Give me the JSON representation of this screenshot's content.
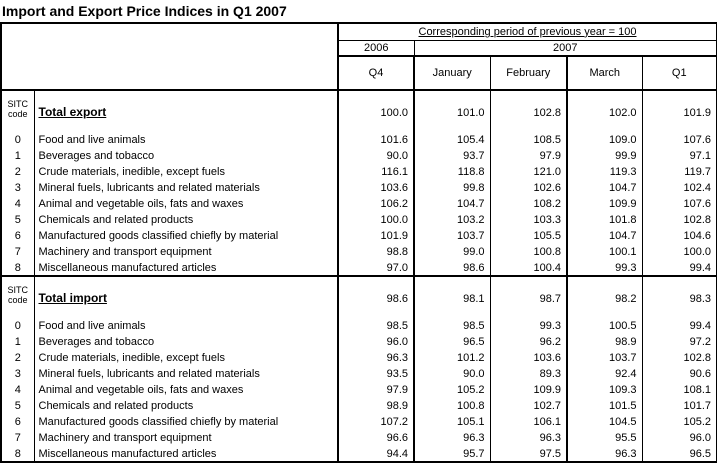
{
  "title": "Import and Export Price Indices in Q1 2007",
  "chart_data": {
    "type": "table",
    "title": "Import and Export Price Indices in Q1 2007",
    "unit_note": "Corresponding period of previous year = 100",
    "year_groups": [
      {
        "label": "2006",
        "columns": 1
      },
      {
        "label": "2007",
        "columns": 4
      }
    ],
    "columns": [
      "Q4",
      "January",
      "February",
      "March",
      "Q1"
    ],
    "row_code_header": [
      "SITC",
      "code"
    ],
    "sections": [
      {
        "total": {
          "label": "Total export",
          "values": [
            "100.0",
            "101.0",
            "102.8",
            "102.0",
            "101.9"
          ]
        },
        "rows": [
          {
            "code": "0",
            "name": "Food and live animals",
            "values": [
              "101.6",
              "105.4",
              "108.5",
              "109.0",
              "107.6"
            ]
          },
          {
            "code": "1",
            "name": "Beverages and tobacco",
            "values": [
              "90.0",
              "93.7",
              "97.9",
              "99.9",
              "97.1"
            ]
          },
          {
            "code": "2",
            "name": "Crude materials, inedible, except fuels",
            "values": [
              "116.1",
              "118.8",
              "121.0",
              "119.3",
              "119.7"
            ]
          },
          {
            "code": "3",
            "name": "Mineral fuels, lubricants and related materials",
            "values": [
              "103.6",
              "99.8",
              "102.6",
              "104.7",
              "102.4"
            ]
          },
          {
            "code": "4",
            "name": "Animal and vegetable oils, fats and waxes",
            "values": [
              "106.2",
              "104.7",
              "108.2",
              "109.9",
              "107.6"
            ]
          },
          {
            "code": "5",
            "name": "Chemicals and related products",
            "values": [
              "100.0",
              "103.2",
              "103.3",
              "101.8",
              "102.8"
            ]
          },
          {
            "code": "6",
            "name": "Manufactured goods classified chiefly by material",
            "values": [
              "101.9",
              "103.7",
              "105.5",
              "104.7",
              "104.6"
            ]
          },
          {
            "code": "7",
            "name": "Machinery and transport equipment",
            "values": [
              "98.8",
              "99.0",
              "100.8",
              "100.1",
              "100.0"
            ]
          },
          {
            "code": "8",
            "name": "Miscellaneous manufactured articles",
            "values": [
              "97.0",
              "98.6",
              "100.4",
              "99.3",
              "99.4"
            ]
          }
        ]
      },
      {
        "total": {
          "label": "Total import",
          "values": [
            "98.6",
            "98.1",
            "98.7",
            "98.2",
            "98.3"
          ]
        },
        "rows": [
          {
            "code": "0",
            "name": "Food and live animals",
            "values": [
              "98.5",
              "98.5",
              "99.3",
              "100.5",
              "99.4"
            ]
          },
          {
            "code": "1",
            "name": "Beverages and tobacco",
            "values": [
              "96.0",
              "96.5",
              "96.2",
              "98.9",
              "97.2"
            ]
          },
          {
            "code": "2",
            "name": "Crude materials, inedible, except fuels",
            "values": [
              "96.3",
              "101.2",
              "103.6",
              "103.7",
              "102.8"
            ]
          },
          {
            "code": "3",
            "name": "Mineral fuels, lubricants and related materials",
            "values": [
              "93.5",
              "90.0",
              "89.3",
              "92.4",
              "90.6"
            ]
          },
          {
            "code": "4",
            "name": "Animal and vegetable oils, fats and waxes",
            "values": [
              "97.9",
              "105.2",
              "109.9",
              "109.3",
              "108.1"
            ]
          },
          {
            "code": "5",
            "name": "Chemicals and related products",
            "values": [
              "98.9",
              "100.8",
              "102.7",
              "101.5",
              "101.7"
            ]
          },
          {
            "code": "6",
            "name": "Manufactured goods classified chiefly by material",
            "values": [
              "107.2",
              "105.1",
              "106.1",
              "104.5",
              "105.2"
            ]
          },
          {
            "code": "7",
            "name": "Machinery and transport equipment",
            "values": [
              "96.6",
              "96.3",
              "96.3",
              "95.5",
              "96.0"
            ]
          },
          {
            "code": "8",
            "name": "Miscellaneous manufactured articles",
            "values": [
              "94.4",
              "95.7",
              "97.5",
              "96.3",
              "96.5"
            ]
          }
        ]
      }
    ]
  }
}
